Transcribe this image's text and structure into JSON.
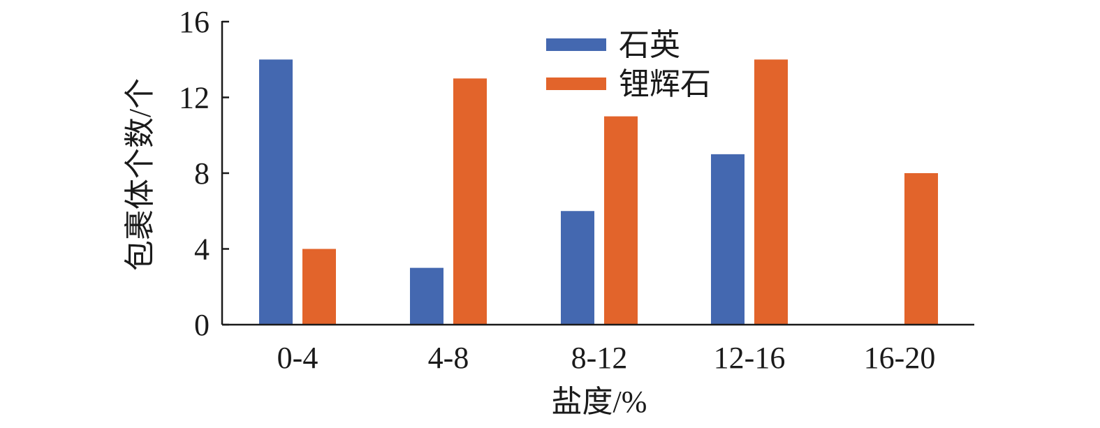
{
  "chart_data": {
    "type": "bar",
    "categories": [
      "0-4",
      "4-8",
      "8-12",
      "12-16",
      "16-20"
    ],
    "series": [
      {
        "name": "石英",
        "color": "#4468b0",
        "values": [
          14,
          3,
          6,
          9,
          0
        ]
      },
      {
        "name": "锂辉石",
        "color": "#e2642b",
        "values": [
          4,
          13,
          11,
          14,
          8
        ]
      }
    ],
    "xlabel": "盐度/%",
    "ylabel": "包裹体个数/个",
    "ylim": [
      0,
      16
    ],
    "yticks": [
      0,
      4,
      8,
      12,
      16
    ],
    "grid": false,
    "legend_position": "top-center"
  }
}
